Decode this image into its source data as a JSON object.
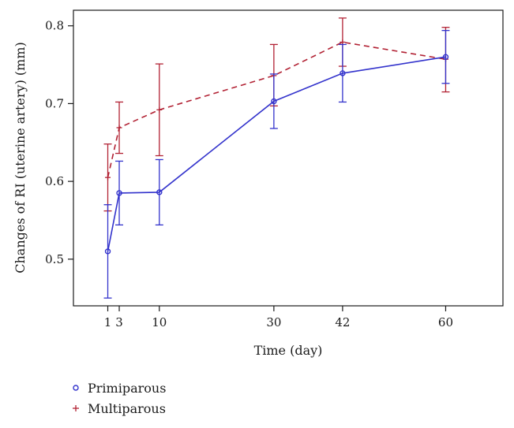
{
  "chart_data": {
    "type": "line",
    "title": "",
    "xlabel": "Time (day)",
    "ylabel": "Changes of RI (uterine artery) (mm)",
    "x": [
      1,
      3,
      10,
      30,
      42,
      60
    ],
    "x_tick_labels": [
      "1",
      "3",
      "10",
      "30",
      "42",
      "60"
    ],
    "y_ticks": [
      0.5,
      0.6,
      0.7,
      0.8
    ],
    "y_tick_labels": [
      "0.5",
      "0.6",
      "0.7",
      "0.8"
    ],
    "xlim": [
      -5,
      70
    ],
    "ylim": [
      0.44,
      0.82
    ],
    "grid": false,
    "legend_position": "bottom-left",
    "series": [
      {
        "name": "Primiparous",
        "color": "#3333cc",
        "marker": "circle",
        "line_style": "solid",
        "values": [
          0.51,
          0.585,
          0.586,
          0.703,
          0.739,
          0.76
        ],
        "error_low": [
          0.45,
          0.544,
          0.544,
          0.668,
          0.702,
          0.726
        ],
        "error_high": [
          0.57,
          0.626,
          0.628,
          0.738,
          0.776,
          0.794
        ]
      },
      {
        "name": "Multiparous",
        "color": "#b22234",
        "marker": "plus",
        "line_style": "dashed",
        "values": [
          0.605,
          0.669,
          0.692,
          0.736,
          0.779,
          0.757
        ],
        "error_low": [
          0.562,
          0.636,
          0.633,
          0.697,
          0.748,
          0.715
        ],
        "error_high": [
          0.648,
          0.702,
          0.751,
          0.776,
          0.81,
          0.798
        ]
      }
    ]
  }
}
